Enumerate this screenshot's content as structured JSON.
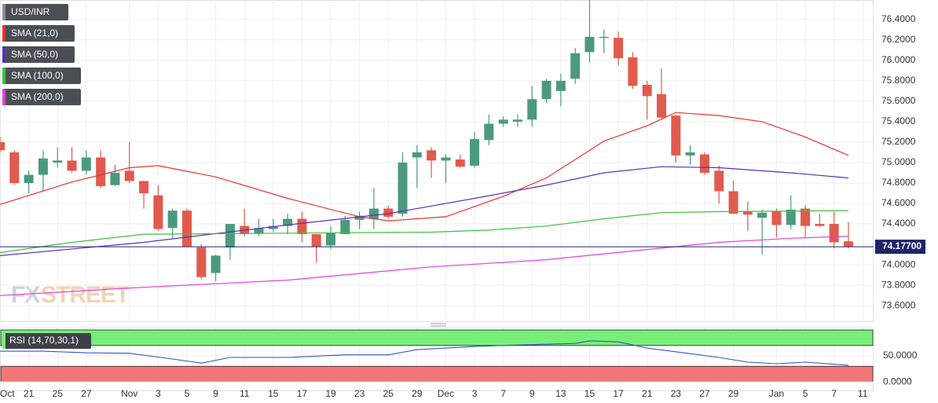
{
  "chart_data": {
    "type": "candlestick",
    "title": "USD/INR",
    "watermark": [
      "FX",
      "STREET"
    ],
    "up_color": "#4b9a7e",
    "down_color": "#e15a4d",
    "open": [
      75.2,
      75.1,
      74.8,
      74.88,
      75.0,
      75.02,
      74.92,
      75.05,
      74.78,
      74.92,
      74.82,
      74.68,
      74.36,
      74.53,
      74.17,
      73.92,
      74.17,
      74.38,
      74.31,
      74.35,
      74.38,
      74.45,
      74.3,
      74.19,
      74.3,
      74.44,
      74.45,
      74.55,
      74.5,
      75.05,
      75.12,
      75.02,
      75.03,
      74.97,
      75.22,
      75.38,
      75.4,
      75.42,
      75.62,
      75.7,
      75.82,
      76.08,
      76.22,
      76.22,
      76.03,
      75.76,
      75.67,
      75.46,
      75.07,
      75.08,
      74.92,
      74.72,
      74.52,
      74.46,
      74.52,
      74.39,
      74.55,
      74.4,
      74.4,
      74.23
    ],
    "high": [
      75.25,
      75.12,
      74.92,
      75.12,
      75.15,
      75.15,
      75.12,
      75.12,
      74.98,
      75.2,
      74.82,
      74.78,
      74.55,
      74.55,
      74.2,
      74.1,
      74.4,
      74.55,
      74.45,
      74.45,
      74.5,
      74.52,
      74.3,
      74.38,
      74.48,
      74.52,
      74.75,
      74.58,
      75.1,
      75.17,
      75.15,
      75.08,
      75.08,
      75.3,
      75.47,
      75.45,
      75.47,
      75.75,
      75.82,
      75.87,
      76.12,
      76.62,
      76.3,
      76.28,
      76.08,
      75.8,
      75.92,
      75.47,
      75.17,
      75.1,
      74.97,
      74.82,
      74.62,
      74.54,
      74.55,
      74.68,
      74.58,
      74.5,
      74.52,
      74.42
    ],
    "low": [
      75.1,
      74.78,
      74.7,
      74.72,
      74.95,
      74.9,
      74.88,
      74.75,
      74.77,
      74.8,
      74.55,
      74.33,
      74.25,
      74.17,
      73.86,
      73.84,
      74.05,
      74.28,
      74.28,
      74.32,
      74.3,
      74.22,
      74.02,
      74.15,
      74.3,
      74.35,
      74.35,
      74.45,
      74.47,
      74.75,
      74.85,
      74.8,
      74.95,
      74.95,
      75.17,
      75.35,
      75.35,
      75.35,
      75.58,
      75.55,
      75.77,
      75.98,
      76.07,
      75.95,
      75.72,
      75.42,
      75.42,
      75.0,
      74.98,
      74.88,
      74.6,
      74.5,
      74.33,
      74.1,
      74.27,
      74.35,
      74.27,
      74.37,
      74.16,
      74.16
    ],
    "close": [
      75.12,
      74.8,
      74.88,
      75.04,
      75.02,
      74.92,
      75.05,
      74.77,
      74.9,
      74.82,
      74.7,
      74.35,
      74.53,
      74.18,
      73.88,
      74.09,
      74.4,
      74.3,
      74.36,
      74.38,
      74.45,
      74.3,
      74.18,
      74.31,
      74.44,
      74.48,
      74.55,
      74.47,
      75.0,
      75.1,
      75.02,
      75.05,
      74.96,
      75.23,
      75.38,
      75.42,
      75.42,
      75.62,
      75.8,
      75.8,
      76.07,
      76.23,
      76.23,
      76.02,
      75.75,
      75.65,
      75.44,
      75.07,
      75.1,
      74.9,
      74.72,
      74.5,
      74.49,
      74.51,
      74.39,
      74.54,
      74.38,
      74.38,
      74.22,
      74.18
    ],
    "overlays": [
      {
        "name": "SMA (21,0)",
        "color": "#e8342c",
        "x": [
          0,
          5,
          9,
          11,
          15,
          20,
          25,
          27,
          31,
          35,
          38,
          42,
          45,
          47,
          50,
          53,
          56,
          59
        ],
        "values": [
          74.59,
          74.81,
          74.95,
          74.97,
          74.86,
          74.65,
          74.47,
          74.43,
          74.47,
          74.67,
          74.85,
          75.21,
          75.36,
          75.49,
          75.46,
          75.4,
          75.25,
          75.07
        ]
      },
      {
        "name": "SMA (50,0)",
        "color": "#5a2fc0",
        "x": [
          0,
          10,
          20,
          27,
          33,
          38,
          42,
          46,
          50,
          55,
          59
        ],
        "values": [
          74.09,
          74.22,
          74.39,
          74.5,
          74.65,
          74.78,
          74.9,
          74.96,
          74.95,
          74.9,
          74.85
        ]
      },
      {
        "name": "SMA (100,0)",
        "color": "#3cc13c",
        "x": [
          0,
          5,
          10,
          20,
          30,
          34,
          38,
          42,
          46,
          50,
          59
        ],
        "values": [
          74.12,
          74.22,
          74.3,
          74.31,
          74.32,
          74.34,
          74.38,
          74.45,
          74.51,
          74.52,
          74.53
        ]
      },
      {
        "name": "SMA (200,0)",
        "color": "#e23fe2",
        "x": [
          0,
          10,
          20,
          30,
          38,
          45,
          50,
          55,
          59
        ],
        "values": [
          73.7,
          73.78,
          73.85,
          73.98,
          74.05,
          74.15,
          74.22,
          74.26,
          74.28
        ]
      }
    ],
    "last_price": {
      "value": 74.177,
      "label": "74.17700"
    },
    "xlim": [
      0,
      60.75
    ],
    "ylim": [
      73.44,
      76.59
    ],
    "yticks": [
      {
        "value": 73.6,
        "label": "73.6000"
      },
      {
        "value": 73.8,
        "label": "73.8000"
      },
      {
        "value": 74.0,
        "label": "74.0000"
      },
      {
        "value": 74.2,
        "label": "74.2000"
      },
      {
        "value": 74.4,
        "label": "74.4000"
      },
      {
        "value": 74.6,
        "label": "74.6000"
      },
      {
        "value": 74.8,
        "label": "74.8000"
      },
      {
        "value": 75.0,
        "label": "75.0000"
      },
      {
        "value": 75.2,
        "label": "75.2000"
      },
      {
        "value": 75.4,
        "label": "75.4000"
      },
      {
        "value": 75.6,
        "label": "75.6000"
      },
      {
        "value": 75.8,
        "label": "75.8000"
      },
      {
        "value": 76.0,
        "label": "76.0000"
      },
      {
        "value": 76.2,
        "label": "76.2000"
      },
      {
        "value": 76.4,
        "label": "76.4000"
      }
    ],
    "xticks": [
      {
        "value": 0,
        "label": "Oct"
      },
      {
        "value": 2,
        "label": "21"
      },
      {
        "value": 4,
        "label": "25"
      },
      {
        "value": 6,
        "label": "27"
      },
      {
        "value": 9,
        "label": "Nov"
      },
      {
        "value": 11,
        "label": "3"
      },
      {
        "value": 13,
        "label": "5"
      },
      {
        "value": 15,
        "label": "9"
      },
      {
        "value": 17,
        "label": "11"
      },
      {
        "value": 19,
        "label": "15"
      },
      {
        "value": 21,
        "label": "17"
      },
      {
        "value": 23,
        "label": "19"
      },
      {
        "value": 25,
        "label": "23"
      },
      {
        "value": 27,
        "label": "25"
      },
      {
        "value": 29,
        "label": "29"
      },
      {
        "value": 31,
        "label": "Dec"
      },
      {
        "value": 33,
        "label": "3"
      },
      {
        "value": 35,
        "label": "7"
      },
      {
        "value": 37,
        "label": "9"
      },
      {
        "value": 39,
        "label": "13"
      },
      {
        "value": 41,
        "label": "15"
      },
      {
        "value": 43,
        "label": "17"
      },
      {
        "value": 45,
        "label": "21"
      },
      {
        "value": 47,
        "label": "23"
      },
      {
        "value": 49,
        "label": "27"
      },
      {
        "value": 51,
        "label": "29"
      },
      {
        "value": 54,
        "label": "Jan"
      },
      {
        "value": 56,
        "label": "5"
      },
      {
        "value": 58,
        "label": "7"
      },
      {
        "value": 60,
        "label": "11"
      }
    ],
    "indicator": {
      "name": "RSI (14,70,30,1)",
      "color": "#3552d4",
      "x": [
        0,
        3,
        6,
        9,
        12,
        14,
        16,
        20,
        24,
        27,
        29,
        33,
        36,
        40,
        41,
        43,
        45,
        47,
        50,
        52,
        54,
        56,
        59
      ],
      "values": [
        59,
        59,
        56,
        55,
        44,
        36,
        47,
        47,
        52,
        52,
        62,
        68,
        71,
        74,
        79,
        77,
        65,
        58,
        47,
        38,
        35,
        38,
        32
      ],
      "ylim": [
        -18,
        103
      ],
      "yticks": [
        {
          "value": 50,
          "label": "50.0000"
        },
        {
          "value": 0,
          "label": "0.0000"
        }
      ],
      "bands": [
        {
          "range": [
            70,
            100
          ],
          "color": "#77ee77"
        },
        {
          "range": [
            0,
            30
          ],
          "color": "#f47777"
        }
      ]
    }
  }
}
